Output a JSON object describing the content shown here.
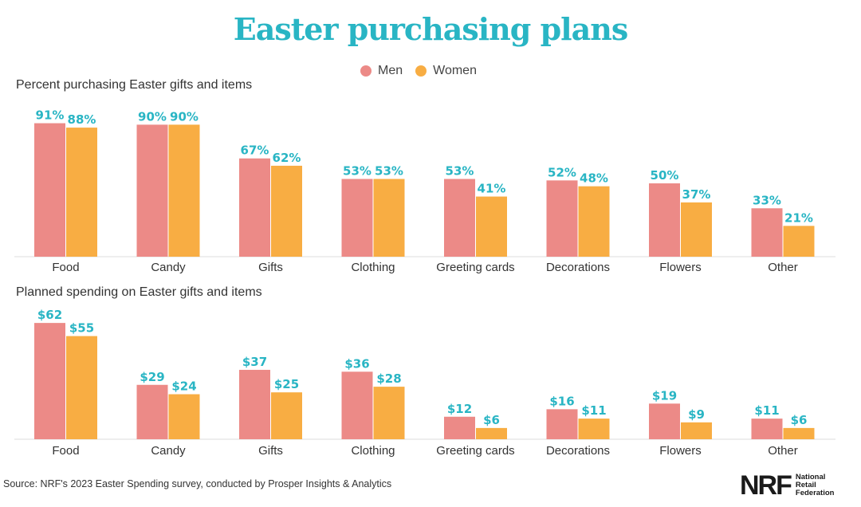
{
  "header": {
    "title": "Easter purchasing plans"
  },
  "legend": {
    "items": [
      {
        "label": "Men",
        "color": "#ec8a87"
      },
      {
        "label": "Women",
        "color": "#f8ad43"
      }
    ]
  },
  "label_color": "#29b5c4",
  "chart_data": [
    {
      "type": "bar",
      "title": "Percent purchasing Easter gifts and items",
      "categories": [
        "Food",
        "Candy",
        "Gifts",
        "Clothing",
        "Greeting cards",
        "Decorations",
        "Flowers",
        "Other"
      ],
      "series": [
        {
          "name": "Men",
          "values": [
            91,
            90,
            67,
            53,
            53,
            52,
            50,
            33
          ],
          "labels": [
            "91%",
            "90%",
            "67%",
            "53%",
            "53%",
            "52%",
            "50%",
            "33%"
          ],
          "color": "#ec8a87"
        },
        {
          "name": "Women",
          "values": [
            88,
            90,
            62,
            53,
            41,
            48,
            37,
            21
          ],
          "labels": [
            "88%",
            "90%",
            "62%",
            "53%",
            "41%",
            "48%",
            "37%",
            "21%"
          ],
          "color": "#f8ad43"
        }
      ],
      "ylim": [
        0,
        100
      ],
      "grid": false,
      "legend": "top-center"
    },
    {
      "type": "bar",
      "title": "Planned spending on Easter gifts and items",
      "categories": [
        "Food",
        "Candy",
        "Gifts",
        "Clothing",
        "Greeting cards",
        "Decorations",
        "Flowers",
        "Other"
      ],
      "series": [
        {
          "name": "Men",
          "values": [
            62,
            29,
            37,
            36,
            12,
            16,
            19,
            11
          ],
          "labels": [
            "$62",
            "$29",
            "$37",
            "$36",
            "$12",
            "$16",
            "$19",
            "$11"
          ],
          "color": "#ec8a87"
        },
        {
          "name": "Women",
          "values": [
            55,
            24,
            25,
            28,
            6,
            11,
            9,
            6
          ],
          "labels": [
            "$55",
            "$24",
            "$25",
            "$28",
            "$6",
            "$11",
            "$9",
            "$6"
          ],
          "color": "#f8ad43"
        }
      ],
      "ylim": [
        0,
        68
      ],
      "grid": false
    }
  ],
  "footer": {
    "source": "Source: NRF's 2023 Easter Spending survey, conducted by Prosper Insights & Analytics",
    "logo_mark": "NRF",
    "logo_line1": "National",
    "logo_line2": "Retail",
    "logo_line3": "Federation"
  }
}
